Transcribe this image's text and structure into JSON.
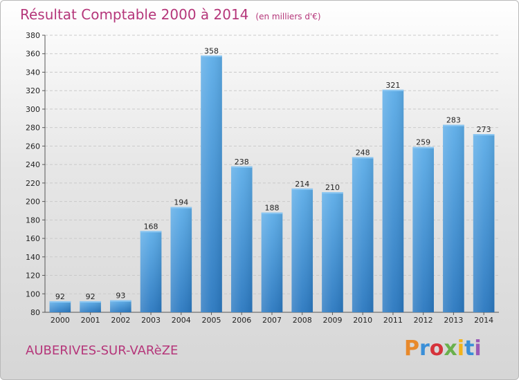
{
  "header": {
    "title": "Résultat Comptable 2000 à 2014",
    "subtitle": "(en milliers d'€)"
  },
  "footer": {
    "commune": "AUBERIVES-SUR-VARèZE",
    "logo_text": "Proxiti",
    "logo_colors": [
      "#e8892b",
      "#3a8fd8",
      "#d6333b",
      "#6ab04c",
      "#f2b31b",
      "#3a8fd8",
      "#9b59b6"
    ]
  },
  "chart_data": {
    "type": "bar",
    "title": "Résultat Comptable 2000 à 2014",
    "subtitle": "(en milliers d'€)",
    "categories": [
      "2000",
      "2001",
      "2002",
      "2003",
      "2004",
      "2005",
      "2006",
      "2007",
      "2008",
      "2009",
      "2010",
      "2011",
      "2012",
      "2013",
      "2014"
    ],
    "values": [
      92,
      92,
      93,
      168,
      194,
      358,
      238,
      188,
      214,
      210,
      248,
      321,
      259,
      283,
      273
    ],
    "ylim": [
      80,
      380
    ],
    "yticks": [
      80,
      100,
      120,
      140,
      160,
      180,
      200,
      220,
      240,
      260,
      280,
      300,
      320,
      340,
      360,
      380
    ],
    "grid": true,
    "bar_color": "#4a9ee0",
    "bar_color_dark": "#2a78c0",
    "xlabel": "",
    "ylabel": ""
  }
}
